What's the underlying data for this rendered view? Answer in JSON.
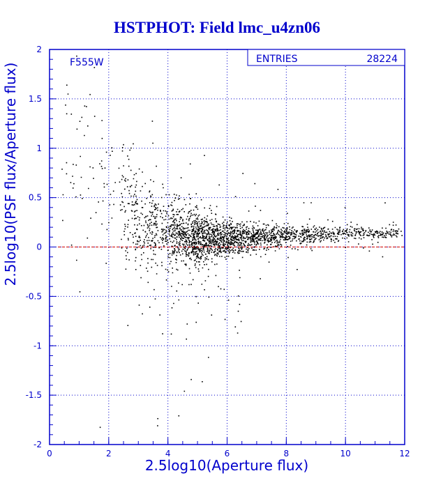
{
  "chart_data": {
    "type": "scatter",
    "title": "HSTPHOT: Field lmc_u4zn06",
    "xlabel": "2.5log10(Aperture flux)",
    "ylabel": "2.5log10(PSF flux/Aperture flux)",
    "xlim": [
      0,
      12
    ],
    "ylim": [
      -2,
      2
    ],
    "x_ticks": [
      "0",
      "2",
      "4",
      "6",
      "8",
      "10",
      "12"
    ],
    "y_ticks": [
      "-2",
      "-1.5",
      "-1",
      "-0.5",
      "0",
      "0.5",
      "1",
      "1.5",
      "2"
    ],
    "grid": true,
    "filter_label": "F555W",
    "stats_box": {
      "label": "ENTRIES",
      "value": "28224"
    },
    "reference_line": {
      "y": 0,
      "color": "#cc0000"
    },
    "series": [
      {
        "n_points": 28224,
        "color": "#000000",
        "profile": [
          {
            "x": 1.0,
            "median": 0.95,
            "spread": 0.5
          },
          {
            "x": 2.0,
            "median": 0.8,
            "spread": 0.4
          },
          {
            "x": 2.6,
            "median": 0.45,
            "spread": 0.3
          },
          {
            "x": 3.2,
            "median": 0.2,
            "spread": 0.22
          },
          {
            "x": 4.0,
            "median": 0.12,
            "spread": 0.18
          },
          {
            "x": 5.0,
            "median": 0.1,
            "spread": 0.12
          },
          {
            "x": 6.0,
            "median": 0.1,
            "spread": 0.09
          },
          {
            "x": 7.0,
            "median": 0.1,
            "spread": 0.07
          },
          {
            "x": 8.0,
            "median": 0.12,
            "spread": 0.05
          },
          {
            "x": 9.0,
            "median": 0.13,
            "spread": 0.04
          },
          {
            "x": 10.0,
            "median": 0.14,
            "spread": 0.035
          },
          {
            "x": 10.8,
            "median": 0.15,
            "spread": 0.03
          }
        ]
      }
    ]
  },
  "colors": {
    "axis": "#0000cc",
    "grid": "#0000cc",
    "title": "#0000cc",
    "points": "#000000",
    "zero_line": "#cc0000"
  }
}
